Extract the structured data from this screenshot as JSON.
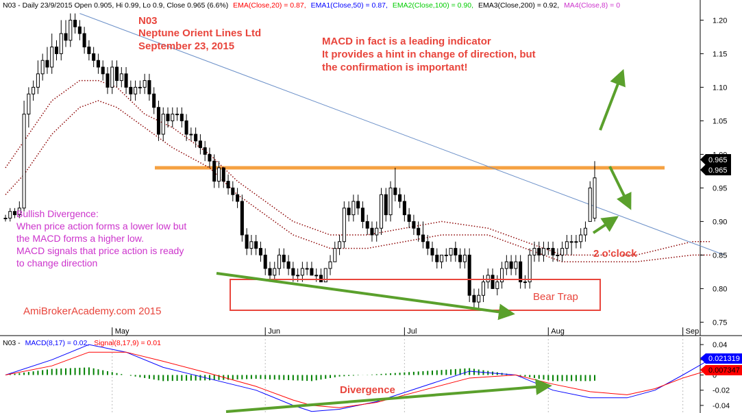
{
  "header": {
    "main_prefix": "N03 - Daily 23/9/2015 Open 0.905, Hi 0.99, Lo 0.9, Close 0.965 (6.6%)",
    "ema": "EMA(Close,20) = 0.87,",
    "ema1": "EMA1(Close,50) = 0.87,",
    "ema2": "EMA2(Close,100) = 0.90,",
    "ema3": "EMA3(Close,200) = 0.92,",
    "ma4": "MA4(Close,8) = 0",
    "macd_prefix": "N03 -",
    "macd": "MACD(8,17) = 0.02,",
    "signal": "Signal(8,17,9) = 0.01"
  },
  "annotations": {
    "stock_code": "N03",
    "company": "Neptune Orient Lines Ltd",
    "date": "September 23, 2015",
    "note_line1": "MACD in fact is a leading indicator",
    "note_line2": "It provides a hint in change of direction, but",
    "note_line3": "the confirmation is important!",
    "bullish_title": "Bullish Divergence:",
    "bullish_line1": "When price action forms a lower low but",
    "bullish_line2": "the MACD forms a higher low.",
    "bullish_line3": "MACD signals that price action is ready",
    "bullish_line4": "to change direction",
    "watermark": "AmiBrokerAcademy.com 2015",
    "bear_trap": "Bear Trap",
    "two_oclock": "2 o'clock",
    "divergence": "Divergence"
  },
  "price_tags": {
    "a": "0.965",
    "b": "0.965"
  },
  "macd_tags": {
    "macd": "0.021319",
    "signal": "0.007347"
  },
  "colors": {
    "up": "#ffffff",
    "down": "#000000",
    "ema_dots": "#8b0000",
    "trendline": "#6a8fc8",
    "resistance": "#f5a142",
    "arrow": "#5aa02c",
    "macd": "#0000ff",
    "signal": "#ff0000",
    "hist": "#008000",
    "annot": "#e8453c",
    "bullish": "#cc33cc"
  },
  "chart_data": [
    {
      "type": "candlestick",
      "ylim": [
        0.73,
        1.23
      ],
      "y_ticks": [
        "1.20",
        "1.15",
        "1.10",
        "1.05",
        "1.00",
        "0.95",
        "0.90",
        "0.85",
        "0.80",
        "0.75"
      ],
      "x_labels": [
        {
          "label": "May",
          "index": 23
        },
        {
          "label": "Jun",
          "index": 56
        },
        {
          "label": "Jul",
          "index": 86
        },
        {
          "label": "Aug",
          "index": 117
        },
        {
          "label": "Sep",
          "index": 146
        }
      ],
      "ohlc": [
        [
          0.905,
          0.91,
          0.9,
          0.905
        ],
        [
          0.905,
          0.92,
          0.9,
          0.915
        ],
        [
          0.915,
          0.92,
          0.905,
          0.91
        ],
        [
          0.91,
          0.93,
          0.905,
          0.92
        ],
        [
          0.92,
          1.08,
          0.915,
          1.06
        ],
        [
          1.06,
          1.1,
          1.04,
          1.09
        ],
        [
          1.09,
          1.11,
          1.08,
          1.1
        ],
        [
          1.1,
          1.14,
          1.09,
          1.12
        ],
        [
          1.12,
          1.15,
          1.11,
          1.14
        ],
        [
          1.14,
          1.16,
          1.12,
          1.13
        ],
        [
          1.13,
          1.18,
          1.12,
          1.16
        ],
        [
          1.16,
          1.17,
          1.14,
          1.15
        ],
        [
          1.15,
          1.2,
          1.14,
          1.18
        ],
        [
          1.18,
          1.2,
          1.16,
          1.17
        ],
        [
          1.17,
          1.21,
          1.16,
          1.2
        ],
        [
          1.2,
          1.21,
          1.18,
          1.19
        ],
        [
          1.19,
          1.2,
          1.17,
          1.18
        ],
        [
          1.18,
          1.19,
          1.15,
          1.16
        ],
        [
          1.16,
          1.17,
          1.14,
          1.15
        ],
        [
          1.15,
          1.16,
          1.13,
          1.14
        ],
        [
          1.14,
          1.15,
          1.12,
          1.13
        ],
        [
          1.13,
          1.14,
          1.11,
          1.12
        ],
        [
          1.12,
          1.13,
          1.09,
          1.1
        ],
        [
          1.1,
          1.14,
          1.09,
          1.13
        ],
        [
          1.13,
          1.14,
          1.1,
          1.11
        ],
        [
          1.11,
          1.13,
          1.1,
          1.12
        ],
        [
          1.12,
          1.13,
          1.09,
          1.1
        ],
        [
          1.1,
          1.11,
          1.08,
          1.09
        ],
        [
          1.09,
          1.11,
          1.08,
          1.1
        ],
        [
          1.1,
          1.11,
          1.09,
          1.1
        ],
        [
          1.1,
          1.12,
          1.09,
          1.11
        ],
        [
          1.11,
          1.12,
          1.08,
          1.09
        ],
        [
          1.09,
          1.1,
          1.06,
          1.07
        ],
        [
          1.07,
          1.08,
          1.02,
          1.03
        ],
        [
          1.03,
          1.07,
          1.02,
          1.06
        ],
        [
          1.06,
          1.07,
          1.04,
          1.05
        ],
        [
          1.05,
          1.07,
          1.04,
          1.06
        ],
        [
          1.06,
          1.07,
          1.05,
          1.06
        ],
        [
          1.06,
          1.07,
          1.04,
          1.05
        ],
        [
          1.05,
          1.06,
          1.02,
          1.03
        ],
        [
          1.03,
          1.04,
          1.02,
          1.03
        ],
        [
          1.03,
          1.04,
          1.01,
          1.02
        ],
        [
          1.02,
          1.03,
          1.0,
          1.01
        ],
        [
          1.01,
          1.02,
          0.99,
          1.0
        ],
        [
          1.0,
          1.01,
          0.98,
          0.99
        ],
        [
          0.99,
          1.0,
          0.95,
          0.96
        ],
        [
          0.96,
          0.99,
          0.95,
          0.98
        ],
        [
          0.98,
          0.98,
          0.95,
          0.96
        ],
        [
          0.96,
          0.97,
          0.94,
          0.95
        ],
        [
          0.95,
          0.96,
          0.93,
          0.94
        ],
        [
          0.94,
          0.95,
          0.92,
          0.93
        ],
        [
          0.93,
          0.94,
          0.87,
          0.88
        ],
        [
          0.88,
          0.89,
          0.85,
          0.86
        ],
        [
          0.86,
          0.88,
          0.85,
          0.87
        ],
        [
          0.87,
          0.88,
          0.85,
          0.86
        ],
        [
          0.86,
          0.87,
          0.84,
          0.85
        ],
        [
          0.85,
          0.86,
          0.82,
          0.83
        ],
        [
          0.83,
          0.84,
          0.81,
          0.82
        ],
        [
          0.82,
          0.84,
          0.81,
          0.83
        ],
        [
          0.83,
          0.86,
          0.82,
          0.85
        ],
        [
          0.85,
          0.86,
          0.83,
          0.84
        ],
        [
          0.84,
          0.85,
          0.82,
          0.83
        ],
        [
          0.83,
          0.84,
          0.81,
          0.82
        ],
        [
          0.82,
          0.83,
          0.81,
          0.82
        ],
        [
          0.82,
          0.84,
          0.81,
          0.83
        ],
        [
          0.83,
          0.84,
          0.82,
          0.83
        ],
        [
          0.83,
          0.84,
          0.82,
          0.82
        ],
        [
          0.82,
          0.83,
          0.81,
          0.82
        ],
        [
          0.82,
          0.83,
          0.81,
          0.81
        ],
        [
          0.81,
          0.83,
          0.81,
          0.83
        ],
        [
          0.83,
          0.85,
          0.82,
          0.84
        ],
        [
          0.84,
          0.87,
          0.84,
          0.86
        ],
        [
          0.86,
          0.88,
          0.85,
          0.87
        ],
        [
          0.87,
          0.93,
          0.86,
          0.92
        ],
        [
          0.92,
          0.93,
          0.9,
          0.91
        ],
        [
          0.91,
          0.94,
          0.9,
          0.93
        ],
        [
          0.93,
          0.94,
          0.91,
          0.92
        ],
        [
          0.92,
          0.93,
          0.89,
          0.9
        ],
        [
          0.9,
          0.91,
          0.88,
          0.89
        ],
        [
          0.89,
          0.9,
          0.87,
          0.88
        ],
        [
          0.88,
          0.9,
          0.87,
          0.89
        ],
        [
          0.89,
          0.95,
          0.88,
          0.94
        ],
        [
          0.94,
          0.95,
          0.9,
          0.91
        ],
        [
          0.91,
          0.96,
          0.9,
          0.95
        ],
        [
          0.95,
          0.98,
          0.93,
          0.94
        ],
        [
          0.94,
          0.95,
          0.92,
          0.93
        ],
        [
          0.93,
          0.94,
          0.9,
          0.91
        ],
        [
          0.91,
          0.92,
          0.89,
          0.9
        ],
        [
          0.9,
          0.91,
          0.88,
          0.89
        ],
        [
          0.89,
          0.9,
          0.87,
          0.88
        ],
        [
          0.88,
          0.9,
          0.86,
          0.87
        ],
        [
          0.87,
          0.88,
          0.85,
          0.86
        ],
        [
          0.86,
          0.87,
          0.84,
          0.85
        ],
        [
          0.85,
          0.86,
          0.83,
          0.84
        ],
        [
          0.84,
          0.85,
          0.83,
          0.85
        ],
        [
          0.85,
          0.86,
          0.84,
          0.85
        ],
        [
          0.85,
          0.86,
          0.84,
          0.86
        ],
        [
          0.86,
          0.87,
          0.84,
          0.85
        ],
        [
          0.85,
          0.86,
          0.83,
          0.84
        ],
        [
          0.84,
          0.86,
          0.83,
          0.85
        ],
        [
          0.85,
          0.86,
          0.78,
          0.79
        ],
        [
          0.79,
          0.8,
          0.77,
          0.78
        ],
        [
          0.78,
          0.8,
          0.77,
          0.79
        ],
        [
          0.79,
          0.82,
          0.78,
          0.81
        ],
        [
          0.81,
          0.83,
          0.8,
          0.82
        ],
        [
          0.82,
          0.83,
          0.8,
          0.8
        ],
        [
          0.8,
          0.82,
          0.79,
          0.81
        ],
        [
          0.81,
          0.84,
          0.8,
          0.83
        ],
        [
          0.83,
          0.85,
          0.82,
          0.84
        ],
        [
          0.84,
          0.85,
          0.82,
          0.83
        ],
        [
          0.83,
          0.85,
          0.82,
          0.84
        ],
        [
          0.84,
          0.85,
          0.8,
          0.81
        ],
        [
          0.81,
          0.82,
          0.8,
          0.81
        ],
        [
          0.81,
          0.86,
          0.8,
          0.85
        ],
        [
          0.85,
          0.87,
          0.84,
          0.86
        ],
        [
          0.86,
          0.87,
          0.84,
          0.85
        ],
        [
          0.85,
          0.87,
          0.84,
          0.86
        ],
        [
          0.86,
          0.87,
          0.85,
          0.86
        ],
        [
          0.86,
          0.87,
          0.84,
          0.85
        ],
        [
          0.85,
          0.86,
          0.84,
          0.85
        ],
        [
          0.85,
          0.87,
          0.84,
          0.86
        ],
        [
          0.86,
          0.88,
          0.85,
          0.87
        ],
        [
          0.87,
          0.88,
          0.85,
          0.87
        ],
        [
          0.87,
          0.88,
          0.86,
          0.87
        ],
        [
          0.87,
          0.89,
          0.86,
          0.88
        ],
        [
          0.88,
          0.9,
          0.87,
          0.89
        ],
        [
          0.9,
          0.96,
          0.9,
          0.95
        ],
        [
          0.905,
          0.99,
          0.9,
          0.965
        ]
      ],
      "ema_dotted_series": [
        {
          "x": [
            0,
            4,
            10,
            16,
            20,
            24,
            30,
            36,
            44,
            50,
            56,
            62,
            70,
            78,
            86,
            94,
            104,
            112,
            120,
            128,
            136,
            142,
            148,
            152
          ],
          "y": [
            0.98,
            1.02,
            1.08,
            1.11,
            1.11,
            1.1,
            1.06,
            1.04,
            1.0,
            0.96,
            0.93,
            0.9,
            0.88,
            0.88,
            0.89,
            0.9,
            0.89,
            0.87,
            0.85,
            0.85,
            0.85,
            0.86,
            0.87,
            0.87
          ]
        },
        {
          "x": [
            0,
            4,
            10,
            16,
            20,
            24,
            30,
            36,
            44,
            50,
            56,
            62,
            70,
            78,
            86,
            94,
            104,
            112,
            120,
            128,
            136,
            142,
            148,
            152
          ],
          "y": [
            0.94,
            0.97,
            1.03,
            1.07,
            1.08,
            1.07,
            1.04,
            1.01,
            0.98,
            0.94,
            0.91,
            0.88,
            0.86,
            0.86,
            0.87,
            0.88,
            0.88,
            0.86,
            0.84,
            0.84,
            0.84,
            0.845,
            0.85,
            0.85
          ]
        }
      ],
      "resistance": 0.98,
      "trendline": {
        "from": [
          16,
          1.21
        ],
        "to": [
          155,
          0.85
        ]
      },
      "last_price": 0.965
    },
    {
      "type": "line",
      "series_names": [
        "MACD(8,17)",
        "Signal(8,17,9)"
      ],
      "ylim": [
        -0.05,
        0.05
      ],
      "y_ticks": [
        "0.04",
        "0.02",
        "0",
        "-0.02",
        "-0.04"
      ],
      "macd": {
        "x": [
          0,
          10,
          18,
          26,
          34,
          44,
          54,
          62,
          66,
          72,
          80,
          90,
          100,
          110,
          118,
          126,
          134,
          140,
          146,
          152
        ],
        "y": [
          0.0,
          0.02,
          0.04,
          0.03,
          0.01,
          -0.005,
          -0.02,
          -0.04,
          -0.048,
          -0.045,
          -0.035,
          -0.015,
          0.005,
          0.0,
          -0.02,
          -0.03,
          -0.03,
          -0.02,
          0.0,
          0.021
        ]
      },
      "signal": {
        "x": [
          0,
          10,
          18,
          26,
          34,
          44,
          54,
          62,
          66,
          72,
          80,
          90,
          100,
          110,
          118,
          126,
          134,
          140,
          146,
          152
        ],
        "y": [
          0.0,
          0.012,
          0.03,
          0.03,
          0.018,
          0.002,
          -0.015,
          -0.033,
          -0.04,
          -0.043,
          -0.036,
          -0.02,
          -0.004,
          0.0,
          -0.012,
          -0.022,
          -0.026,
          -0.018,
          -0.004,
          0.007
        ]
      },
      "histogram": {
        "x": [
          0,
          10,
          18,
          26,
          34,
          44,
          54,
          62,
          66,
          72,
          80,
          90,
          100,
          110,
          118,
          126,
          134,
          140,
          146,
          152
        ],
        "y": [
          0.0,
          0.008,
          0.01,
          0.0,
          -0.008,
          -0.007,
          -0.005,
          -0.007,
          -0.008,
          -0.002,
          0.001,
          0.005,
          0.009,
          0.0,
          -0.008,
          -0.008,
          -0.004,
          -0.002,
          0.004,
          0.014
        ]
      }
    }
  ]
}
